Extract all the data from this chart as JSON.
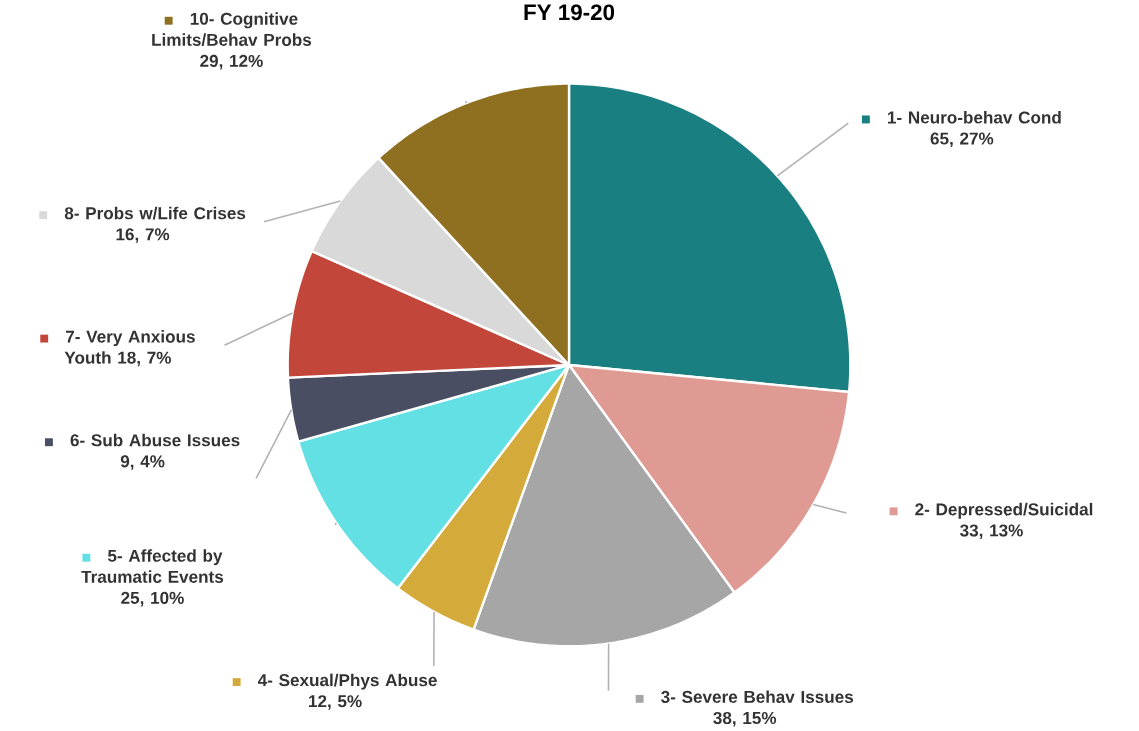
{
  "chart_data": {
    "type": "pie",
    "title": "FY 19-20",
    "legend": "left",
    "categories": [
      "1- Neuro-behav Cond",
      "2- Depressed/Suicidal",
      "3- Severe Behav Issues",
      "4- Sexual/Phys Abuse",
      "5- Affected by Traumatic Events",
      "6- Sub Abuse Issues",
      "7- Very Anxious Youth",
      "8- Probs w/Life Crises",
      "10- Cognitive Limits/Behav Probs"
    ],
    "values": [
      65,
      33,
      38,
      12,
      25,
      9,
      18,
      16,
      29
    ],
    "value_labels": [
      "65, 27%",
      "33, 13%",
      "38, 15%",
      "12, 5%",
      "25, 10%",
      "9, 4%",
      "18, 7%",
      "16, 7%",
      "29, 12%"
    ],
    "colors": [
      "#1a7f80",
      "#e09a94",
      "#a6a6a6",
      "#d4aa3a",
      "#62e0e4",
      "#4a4e62",
      "#c2473a",
      "#d9d9d9",
      "#8f7020"
    ]
  }
}
